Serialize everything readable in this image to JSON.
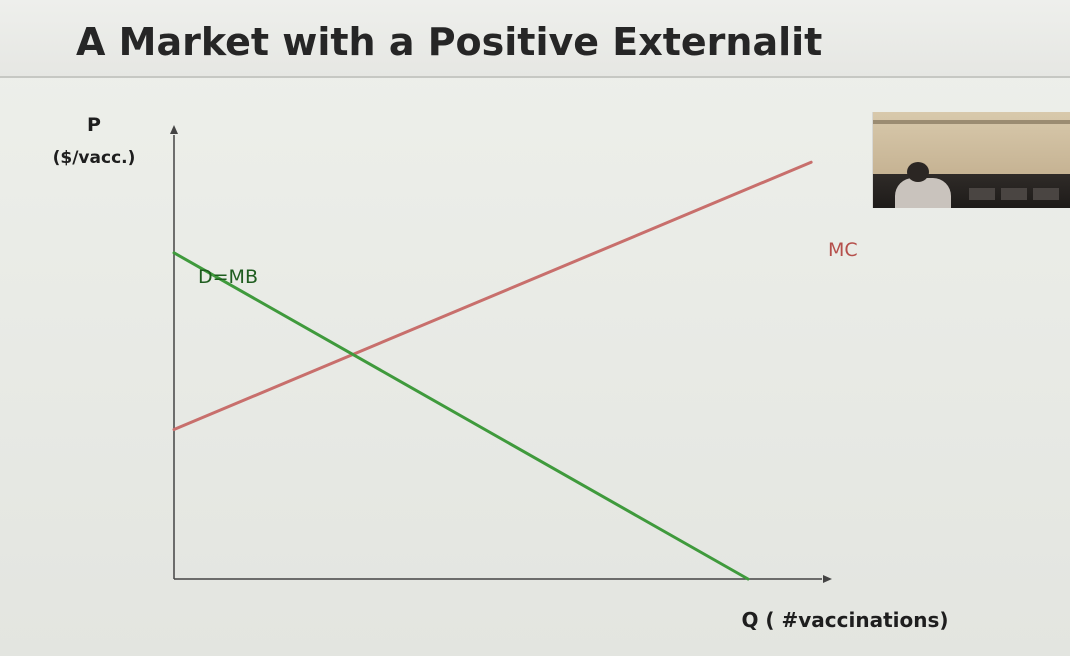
{
  "slide": {
    "title": "A Market with a Positive Externalit"
  },
  "webcam": {
    "icon": "webcam-video-feed"
  },
  "chart_data": {
    "type": "line",
    "title": "A Market with a Positive Externalit",
    "ylabel": "P",
    "ylabel_unit": "($/vacc.)",
    "xlabel": "Q ( #vaccinations)",
    "xlim": [
      0,
      100
    ],
    "ylim": [
      0,
      100
    ],
    "grid": false,
    "legend": "none",
    "series": [
      {
        "name": "D=MB",
        "color": "#3f9a3c",
        "points": [
          [
            0,
            72
          ],
          [
            100,
            0
          ]
        ]
      },
      {
        "name": "MC",
        "color": "#c86f6c",
        "points": [
          [
            0,
            33
          ],
          [
            111,
            92
          ]
        ]
      }
    ]
  }
}
